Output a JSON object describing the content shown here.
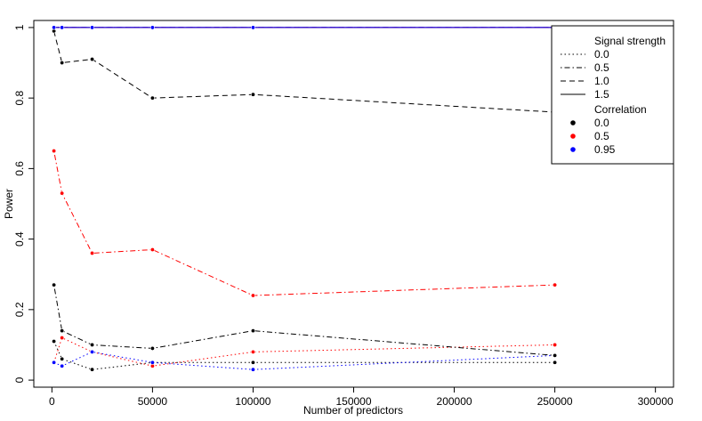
{
  "chart_data": {
    "type": "line",
    "title": "",
    "xlabel": "Number of predictors",
    "ylabel": "Power",
    "xlim": [
      -9000,
      309000
    ],
    "ylim": [
      -0.02,
      1.02
    ],
    "xticks": [
      0,
      50000,
      100000,
      150000,
      200000,
      250000,
      300000
    ],
    "yticks": [
      0,
      0.2,
      0.4,
      0.6,
      0.8,
      1
    ],
    "x": [
      1000,
      5000,
      20000,
      50000,
      100000,
      250000
    ],
    "grid": false,
    "legend": {
      "position": "top-right",
      "linetype_title": "Signal strength",
      "linetypes": [
        {
          "label": "0.0",
          "dash": "dotted"
        },
        {
          "label": "0.5",
          "dash": "dotdash"
        },
        {
          "label": "1.0",
          "dash": "dashed"
        },
        {
          "label": "1.5",
          "dash": "solid"
        }
      ],
      "color_title": "Correlation",
      "colors": [
        {
          "label": "0.0",
          "color": "#000000"
        },
        {
          "label": "0.5",
          "color": "#ff0000"
        },
        {
          "label": "0.95",
          "color": "#0000ff"
        }
      ]
    },
    "series": [
      {
        "signal": "0.0",
        "correlation": "0.0",
        "color": "#000000",
        "dash": "dotted",
        "values": [
          0.11,
          0.06,
          0.03,
          0.05,
          0.05,
          0.05
        ]
      },
      {
        "signal": "0.0",
        "correlation": "0.5",
        "color": "#ff0000",
        "dash": "dotted",
        "values": [
          0.05,
          0.12,
          0.08,
          0.04,
          0.08,
          0.1
        ]
      },
      {
        "signal": "0.0",
        "correlation": "0.95",
        "color": "#0000ff",
        "dash": "dotted",
        "values": [
          0.05,
          0.04,
          0.08,
          0.05,
          0.03,
          0.07
        ]
      },
      {
        "signal": "0.5",
        "correlation": "0.0",
        "color": "#000000",
        "dash": "dotdash",
        "values": [
          0.27,
          0.14,
          0.1,
          0.09,
          0.14,
          0.07
        ]
      },
      {
        "signal": "0.5",
        "correlation": "0.5",
        "color": "#ff0000",
        "dash": "dotdash",
        "values": [
          0.65,
          0.53,
          0.36,
          0.37,
          0.24,
          0.27
        ]
      },
      {
        "signal": "0.5",
        "correlation": "0.95",
        "color": "#0000ff",
        "dash": "dotdash",
        "values": [
          1.0,
          1.0,
          1.0,
          1.0,
          1.0,
          1.0
        ]
      },
      {
        "signal": "1.0",
        "correlation": "0.0",
        "color": "#000000",
        "dash": "dashed",
        "values": [
          0.99,
          0.9,
          0.91,
          0.8,
          0.81,
          0.76
        ]
      },
      {
        "signal": "1.0",
        "correlation": "0.5",
        "color": "#ff0000",
        "dash": "dashed",
        "values": [
          1.0,
          1.0,
          1.0,
          1.0,
          1.0,
          1.0
        ]
      },
      {
        "signal": "1.0",
        "correlation": "0.95",
        "color": "#0000ff",
        "dash": "dashed",
        "values": [
          1.0,
          1.0,
          1.0,
          1.0,
          1.0,
          1.0
        ]
      },
      {
        "signal": "1.5",
        "correlation": "0.0",
        "color": "#000000",
        "dash": "solid",
        "values": [
          1.0,
          1.0,
          1.0,
          1.0,
          1.0,
          1.0
        ]
      },
      {
        "signal": "1.5",
        "correlation": "0.5",
        "color": "#ff0000",
        "dash": "solid",
        "values": [
          1.0,
          1.0,
          1.0,
          1.0,
          1.0,
          1.0
        ]
      },
      {
        "signal": "1.5",
        "correlation": "0.95",
        "color": "#0000ff",
        "dash": "solid",
        "values": [
          1.0,
          1.0,
          1.0,
          1.0,
          1.0,
          1.0
        ]
      }
    ]
  }
}
